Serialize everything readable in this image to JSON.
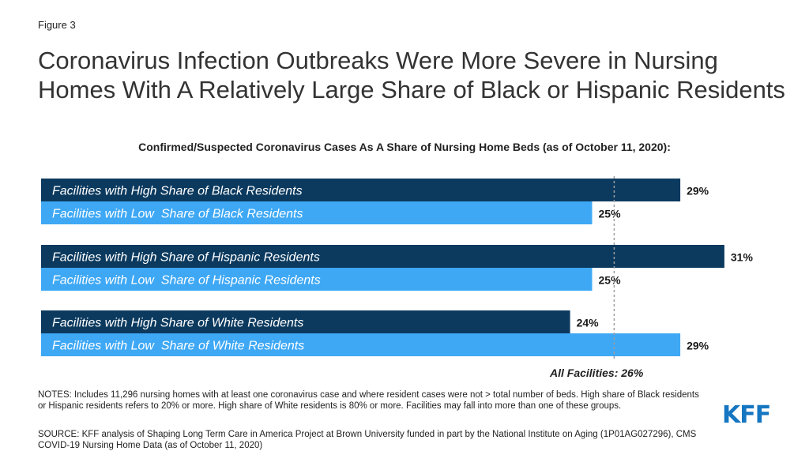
{
  "figure_label": "Figure 3",
  "title": "Coronavirus Infection Outbreaks Were More Severe in Nursing Homes With A Relatively Large Share of Black or Hispanic Residents",
  "logo_text": "KFF",
  "colors": {
    "high_share": "#0c3a5f",
    "low_share": "#3ea8f5",
    "bar_label_text": "#ffffff",
    "reference_line": "#9e9e9e",
    "logo": "#1576c2"
  },
  "chart_data": {
    "type": "bar",
    "orientation": "horizontal",
    "title": "Confirmed/Suspected Coronavirus Cases As A Share of Nursing Home Beds (as of October 11, 2020):",
    "unit": "%",
    "groups": [
      {
        "bars": [
          {
            "label": "Facilities with High Share of Black Residents",
            "value": 29,
            "display": "29%",
            "share": "high"
          },
          {
            "label": "Facilities with Low  Share of Black Residents",
            "value": 25,
            "display": "25%",
            "share": "low"
          }
        ]
      },
      {
        "bars": [
          {
            "label": "Facilities with High Share of Hispanic Residents",
            "value": 31,
            "display": "31%",
            "share": "high"
          },
          {
            "label": "Facilities with Low  Share of Hispanic Residents",
            "value": 25,
            "display": "25%",
            "share": "low"
          }
        ]
      },
      {
        "bars": [
          {
            "label": "Facilities with High Share of White Residents",
            "value": 24,
            "display": "24%",
            "share": "high"
          },
          {
            "label": "Facilities with Low  Share of White Residents",
            "value": 29,
            "display": "29%",
            "share": "low"
          }
        ]
      }
    ],
    "reference_line": {
      "label": "All Facilities: 26%",
      "value": 26
    },
    "xlim": [
      0,
      31
    ],
    "grid": false,
    "legend": "none"
  },
  "notes": "NOTES: Includes  11,296 nursing homes with at least one coronavirus  case and where resident cases were not > total number  of beds. High share of Black residents or Hispanic residents refers to 20% or more. High share of White residents is 80% or more.  Facilities may fall into more than one of these groups.",
  "source": "SOURCE: KFF analysis of Shaping Long Term Care in America Project at Brown University  funded in part by the National Institute  on Aging (1P01AG027296), CMS COVID-19 Nursing Home Data (as of October 11, 2020)"
}
